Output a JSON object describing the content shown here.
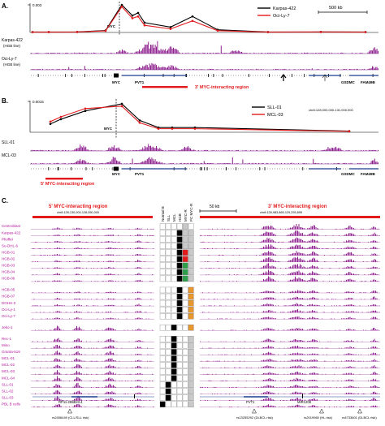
{
  "panelA": {
    "label": "A.",
    "ytick": "0.003",
    "legend": [
      {
        "name": "Karpas-422",
        "color": "#000000"
      },
      {
        "name": "Oci-Ly-7",
        "color": "#e31a1c"
      }
    ],
    "scalebar": "500 kb",
    "tracks": [
      "Karpas-422",
      "(HGB line)",
      "Oci-Ly-7",
      "(HGB line)"
    ],
    "genes": {
      "myc": "MYC",
      "pvt1": "PVT1",
      "gsdmc": "GSDMC",
      "fam49b": "FAM49B"
    },
    "region": "3' MYC-interacting region",
    "series": [
      {
        "name": "Karpas-422",
        "values": [
          5e-05,
          5e-05,
          6e-05,
          0.00022,
          0.0031,
          0.0019,
          0.0022,
          0.0011,
          0.0006,
          0.0018,
          0.0003,
          5e-05,
          6e-05,
          5e-05
        ]
      },
      {
        "name": "Oci-Ly-7",
        "values": [
          4e-05,
          4e-05,
          5e-05,
          0.00018,
          0.0029,
          0.0016,
          0.0018,
          0.0008,
          0.0004,
          0.0013,
          0.0002,
          4e-05,
          5e-05,
          4e-05
        ]
      }
    ]
  },
  "panelB": {
    "label": "B.",
    "ytick": "0.0015",
    "legend": [
      {
        "name": "SLL-01",
        "color": "#000000"
      },
      {
        "name": "MCL-03",
        "color": "#e31a1c"
      }
    ],
    "coords": "chr8:128,000,000-131,000,000",
    "tracks": [
      "SLL-01",
      "MCL-03"
    ],
    "genes": {
      "myc": "MYC",
      "pvt1": "PVT1",
      "gsdmc": "GSDMC",
      "fam49b": "FAM49B"
    },
    "region": "5' MYC-interacting region",
    "series": [
      {
        "name": "SLL-01",
        "values": [
          0.00035,
          0.00055,
          0.0009,
          0.0012,
          0.0005,
          0.0002,
          0.0002,
          0.0002,
          5e-05
        ]
      },
      {
        "name": "MCL-03",
        "values": [
          0.00045,
          0.00065,
          0.001,
          0.0011,
          0.0004,
          0.00015,
          0.00015,
          0.00015,
          4e-05
        ]
      }
    ]
  },
  "panelC": {
    "label": "C.",
    "left_title": "5' MYC-interacting region",
    "left_coords": "chr8:128,130,000-128,050,000",
    "right_title": "3' MYC-interacting region",
    "right_coords": "chr8:128,983,865-129,293,895",
    "scalebar": "50 kb",
    "col_headers": [
      "Normal B",
      "SLL",
      "MCL",
      "HGB",
      "MYC-R",
      "PC MYC-R"
    ],
    "rows": [
      {
        "name": "Centroblast",
        "color": "#b5179e",
        "cells": [
          "w",
          "w",
          "w",
          "w",
          "g",
          "w"
        ]
      },
      {
        "name": "Karpas-422",
        "color": "#b5179e",
        "cells": [
          "w",
          "w",
          "w",
          "k",
          "g",
          "g"
        ]
      },
      {
        "name": "Pfeiffer",
        "color": "#b5179e",
        "cells": [
          "w",
          "w",
          "w",
          "k",
          "g",
          "g"
        ]
      },
      {
        "name": "Su-DHL-6",
        "color": "#b5179e",
        "cells": [
          "w",
          "w",
          "w",
          "k",
          "g",
          "g"
        ]
      },
      {
        "name": "HGB-01",
        "color": "#b5179e",
        "cells": [
          "w",
          "w",
          "w",
          "k",
          "r",
          "g"
        ]
      },
      {
        "name": "HGB-02",
        "color": "#b5179e",
        "cells": [
          "w",
          "w",
          "w",
          "k",
          "r",
          "g"
        ]
      },
      {
        "name": "HGB-03",
        "color": "#b5179e",
        "cells": [
          "w",
          "w",
          "w",
          "k",
          "n",
          "g"
        ]
      },
      {
        "name": "HGB-04",
        "color": "#b5179e",
        "cells": [
          "w",
          "w",
          "w",
          "k",
          "n",
          "g"
        ]
      },
      {
        "name": "HGB-06",
        "color": "#b5179e",
        "cells": [
          "w",
          "w",
          "w",
          "k",
          "n",
          "g"
        ]
      },
      {
        "name": "HGB-05",
        "color": "#b5179e",
        "cells": [
          "w",
          "w",
          "w",
          "k",
          "w",
          "o"
        ]
      },
      {
        "name": "HGB-07",
        "color": "#b5179e",
        "cells": [
          "w",
          "w",
          "w",
          "k",
          "w",
          "o"
        ]
      },
      {
        "name": "DOHH-2",
        "color": "#b5179e",
        "cells": [
          "w",
          "w",
          "w",
          "k",
          "w",
          "o"
        ]
      },
      {
        "name": "Oci-Ly-1",
        "color": "#b5179e",
        "cells": [
          "w",
          "w",
          "w",
          "k",
          "w",
          "o"
        ]
      },
      {
        "name": "Oci-Ly-7",
        "color": "#b5179e",
        "cells": [
          "w",
          "w",
          "w",
          "k",
          "w",
          "o"
        ]
      },
      {
        "name": "Jeko-1",
        "color": "#b5179e",
        "cells": [
          "w",
          "w",
          "k",
          "w",
          "w",
          "o"
        ]
      },
      {
        "name": "Rec-1",
        "color": "#b5179e",
        "cells": [
          "w",
          "w",
          "k",
          "w",
          "w",
          "g"
        ]
      },
      {
        "name": "Mino",
        "color": "#b5179e",
        "cells": [
          "w",
          "w",
          "k",
          "w",
          "w",
          "g"
        ]
      },
      {
        "name": "Granta-519",
        "color": "#b5179e",
        "cells": [
          "w",
          "w",
          "k",
          "w",
          "w",
          "g"
        ]
      },
      {
        "name": "MCL-01",
        "color": "#b5179e",
        "cells": [
          "w",
          "w",
          "k",
          "w",
          "w",
          "g"
        ]
      },
      {
        "name": "MCL-02",
        "color": "#b5179e",
        "cells": [
          "w",
          "w",
          "k",
          "w",
          "w",
          "g"
        ]
      },
      {
        "name": "MCL-03",
        "color": "#b5179e",
        "cells": [
          "w",
          "w",
          "k",
          "w",
          "w",
          "g"
        ]
      },
      {
        "name": "MCL-04",
        "color": "#b5179e",
        "cells": [
          "w",
          "w",
          "k",
          "w",
          "w",
          "g"
        ]
      },
      {
        "name": "SLL-01",
        "color": "#b5179e",
        "cells": [
          "w",
          "k",
          "w",
          "w",
          "w",
          "g"
        ]
      },
      {
        "name": "SLL-02",
        "color": "#b5179e",
        "cells": [
          "w",
          "k",
          "w",
          "w",
          "w",
          "g"
        ]
      },
      {
        "name": "SLL-03",
        "color": "#b5179e",
        "cells": [
          "w",
          "k",
          "w",
          "w",
          "w",
          "g"
        ]
      },
      {
        "name": "PBL B cells",
        "color": "#b5179e",
        "cells": [
          "k",
          "w",
          "w",
          "w",
          "w",
          "g"
        ]
      }
    ],
    "genes_left": "RP11-255B23.4",
    "genes_right": {
      "pvt1": "PVT1",
      "mir": "MIR1208"
    },
    "snps": [
      {
        "id": "rs2456449 (CLL/SLL risk)"
      },
      {
        "id": "rs13255292 (DLBCL risk)"
      },
      {
        "id": "rs2019960 (HL risk)"
      },
      {
        "id": "rs4733601 (DLBCL risk)"
      }
    ]
  }
}
